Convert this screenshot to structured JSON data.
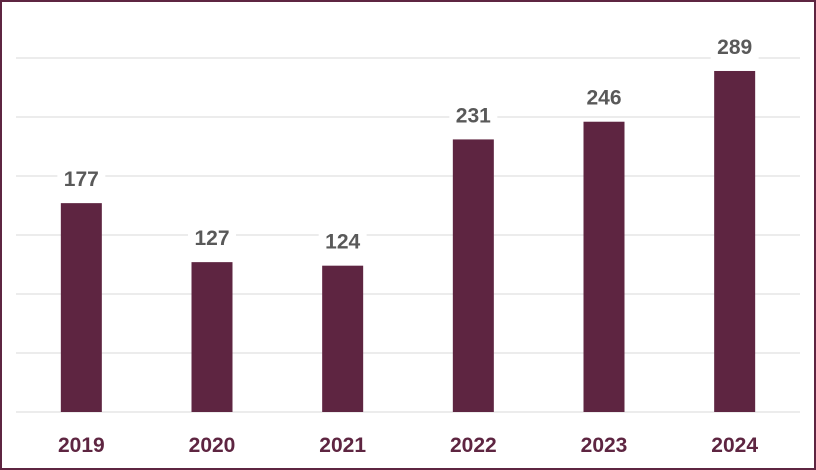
{
  "chart_data": {
    "type": "bar",
    "categories": [
      "2019",
      "2020",
      "2021",
      "2022",
      "2023",
      "2024"
    ],
    "values": [
      177,
      127,
      124,
      231,
      246,
      289
    ],
    "ylim": [
      0,
      300
    ],
    "grid": true,
    "legend": "none",
    "bar_color": "#5e2541",
    "category_label_color": "#5e2541",
    "value_label_color": "#595959",
    "gridline_color": "#d9d9d9",
    "frame_color": "#5e2541"
  }
}
